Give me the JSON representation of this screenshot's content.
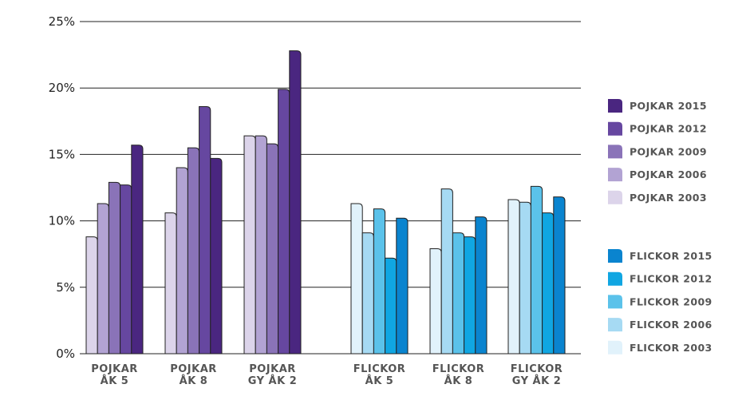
{
  "chart_data": {
    "type": "bar",
    "title": "",
    "xlabel": "",
    "ylabel": "",
    "ylim": [
      0,
      25
    ],
    "y_ticks": [
      "0%",
      "5%",
      "10%",
      "15%",
      "20%",
      "25%"
    ],
    "grid": true,
    "legend_position": "right",
    "groups": [
      {
        "label": "POJKAR ÅK 5",
        "label_lines": [
          "POJKAR",
          "ÅK 5"
        ],
        "gender": "boys",
        "values": {
          "2003": 8.8,
          "2006": 11.3,
          "2009": 12.9,
          "2012": 12.7,
          "2015": 15.7
        }
      },
      {
        "label": "POJKAR ÅK 8",
        "label_lines": [
          "POJKAR",
          "ÅK 8"
        ],
        "gender": "boys",
        "values": {
          "2003": 10.6,
          "2006": 14.0,
          "2009": 15.5,
          "2012": 18.6,
          "2015": 14.7
        }
      },
      {
        "label": "POJKAR GY ÅK 2",
        "label_lines": [
          "POJKAR",
          "GY ÅK 2"
        ],
        "gender": "boys",
        "values": {
          "2003": 16.4,
          "2006": 16.4,
          "2009": 15.8,
          "2012": 19.9,
          "2015": 22.8
        }
      },
      {
        "label": "FLICKOR ÅK 5",
        "label_lines": [
          "FLICKOR",
          "ÅK 5"
        ],
        "gender": "girls",
        "values": {
          "2003": 11.3,
          "2006": 9.1,
          "2009": 10.9,
          "2012": 7.2,
          "2015": 10.2
        }
      },
      {
        "label": "FLICKOR ÅK 8",
        "label_lines": [
          "FLICKOR",
          "ÅK 8"
        ],
        "gender": "girls",
        "values": {
          "2003": 7.9,
          "2006": 12.4,
          "2009": 9.1,
          "2012": 8.8,
          "2015": 10.3
        }
      },
      {
        "label": "FLICKOR GY ÅK 2",
        "label_lines": [
          "FLICKOR",
          "GY ÅK 2"
        ],
        "gender": "girls",
        "values": {
          "2003": 11.6,
          "2006": 11.4,
          "2009": 12.6,
          "2012": 10.6,
          "2015": 11.8
        }
      }
    ],
    "years": [
      "2003",
      "2006",
      "2009",
      "2012",
      "2015"
    ],
    "series": [
      {
        "name": "POJKAR 2015",
        "gender": "boys",
        "year": "2015",
        "color": "#4a2680"
      },
      {
        "name": "POJKAR 2012",
        "gender": "boys",
        "year": "2012",
        "color": "#6647a0"
      },
      {
        "name": "POJKAR 2009",
        "gender": "boys",
        "year": "2009",
        "color": "#8a73b8"
      },
      {
        "name": "POJKAR 2006",
        "gender": "boys",
        "year": "2006",
        "color": "#b2a3d3"
      },
      {
        "name": "POJKAR 2003",
        "gender": "boys",
        "year": "2003",
        "color": "#dcd4ea"
      },
      {
        "name": "FLICKOR 2015",
        "gender": "girls",
        "year": "2015",
        "color": "#0a84cf"
      },
      {
        "name": "FLICKOR 2012",
        "gender": "girls",
        "year": "2012",
        "color": "#10a6e2"
      },
      {
        "name": "FLICKOR 2009",
        "gender": "girls",
        "year": "2009",
        "color": "#5bc2ea"
      },
      {
        "name": "FLICKOR 2006",
        "gender": "girls",
        "year": "2006",
        "color": "#a6daf3"
      },
      {
        "name": "FLICKOR 2003",
        "gender": "girls",
        "year": "2003",
        "color": "#e1f2fb"
      }
    ]
  }
}
